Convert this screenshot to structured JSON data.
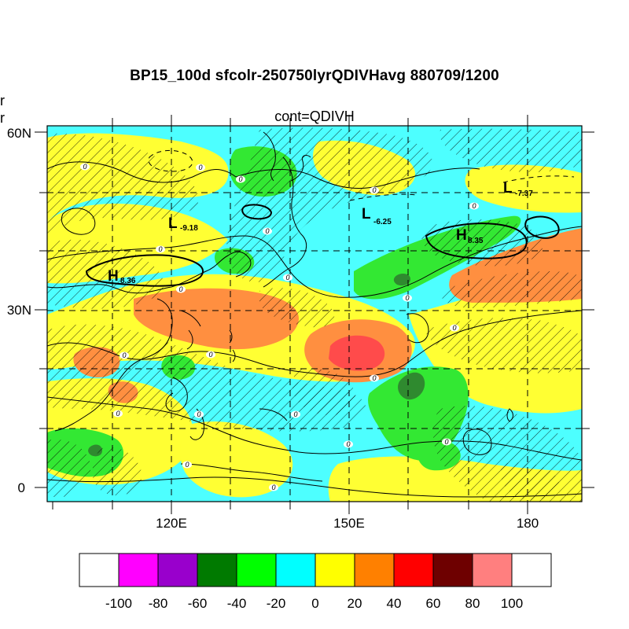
{
  "title": "BP15_100d sfcolr-250750lyrQDIVHavg  880709/1200",
  "subtitle": "cont=QDIVH",
  "left_cut_labels": [
    "olr",
    "olr"
  ],
  "axes": {
    "lat_ticks": [
      "60N",
      "30N",
      "0"
    ],
    "lon_ticks": [
      "120E",
      "150E",
      "180"
    ]
  },
  "pressure_centers": [
    {
      "type": "L",
      "value": "-9.18"
    },
    {
      "type": "L",
      "value": "-6.25"
    },
    {
      "type": "L",
      "value": "-7.37"
    },
    {
      "type": "H",
      "value": "8.36"
    },
    {
      "type": "H",
      "value": "8.35"
    }
  ],
  "contour_zero_label": "0",
  "colorbar": {
    "colors": [
      "#ffffff",
      "#ff00ff",
      "#9900cc",
      "#007a00",
      "#00ff00",
      "#00ffff",
      "#ffff00",
      "#ff8000",
      "#ff0000",
      "#6e0000",
      "#ff7f7f",
      "#ffffff"
    ],
    "labels": [
      "-100",
      "-80",
      "-60",
      "-40",
      "-20",
      "0",
      "20",
      "40",
      "60",
      "80",
      "100"
    ]
  },
  "palette": {
    "cyan": "#4dffff",
    "yellow": "#ffff33",
    "orange": "#ff8f40",
    "green": "#33e833",
    "dark_green": "#2f8a2f",
    "red": "#ff4b4b"
  }
}
